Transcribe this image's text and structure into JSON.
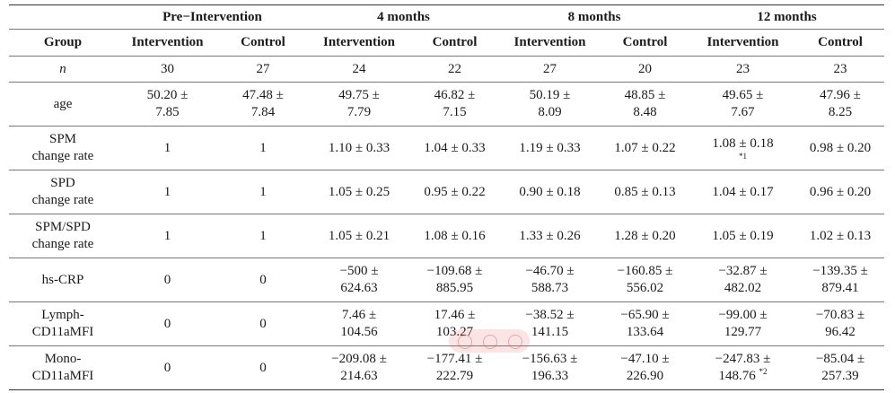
{
  "table": {
    "header_top": {
      "group_blank": "",
      "pre": "Pre−Intervention",
      "m4": "4 months",
      "m8": "8 months",
      "m12": "12 months"
    },
    "header_sub": {
      "group": "Group",
      "c1": "Intervention",
      "c2": "Control",
      "c3": "Intervention",
      "c4": "Control",
      "c5": "Intervention",
      "c6": "Control",
      "c7": "Intervention",
      "c8": "Control"
    },
    "n_row": {
      "label": "n",
      "c1": "30",
      "c2": "27",
      "c3": "24",
      "c4": "22",
      "c5": "27",
      "c6": "20",
      "c7": "23",
      "c8": "23"
    },
    "rows": [
      {
        "label_l1": "age",
        "label_l2": "",
        "c1_l1": "50.20 ±",
        "c1_l2": "7.85",
        "c2_l1": "47.48 ±",
        "c2_l2": "7.84",
        "c3_l1": "49.75 ±",
        "c3_l2": "7.79",
        "c4_l1": "46.82 ±",
        "c4_l2": "7.15",
        "c5_l1": "50.19 ±",
        "c5_l2": "8.09",
        "c6_l1": "48.85 ±",
        "c6_l2": "8.48",
        "c7_l1": "49.65 ±",
        "c7_l2": "7.67",
        "c8_l1": "47.96 ±",
        "c8_l2": "8.25"
      },
      {
        "label_l1": "SPM",
        "label_l2": "change rate",
        "c1": "1",
        "c2": "1",
        "c3": "1.10 ± 0.33",
        "c4": "1.04 ± 0.33",
        "c5": "1.19 ± 0.33",
        "c6": "1.07 ± 0.22",
        "c7": "1.08 ± 0.18",
        "c7_mark": "*1",
        "c8": "0.98 ± 0.20"
      },
      {
        "label_l1": "SPD",
        "label_l2": "change rate",
        "c1": "1",
        "c2": "1",
        "c3": "1.05 ± 0.25",
        "c4": "0.95 ± 0.22",
        "c5": "0.90 ± 0.18",
        "c6": "0.85 ± 0.13",
        "c7": "1.04 ± 0.17",
        "c8": "0.96 ± 0.20"
      },
      {
        "label_l1": "SPM/SPD",
        "label_l2": "change rate",
        "c1": "1",
        "c2": "1",
        "c3": "1.05 ± 0.21",
        "c4": "1.08 ± 0.16",
        "c5": "1.33 ± 0.26",
        "c6": "1.28 ± 0.20",
        "c7": "1.05 ± 0.19",
        "c8": "1.02 ± 0.13"
      },
      {
        "label_l1": "hs-CRP",
        "label_l2": "",
        "c1": "0",
        "c2": "0",
        "c3_l1": "−500 ±",
        "c3_l2": "624.63",
        "c4_l1": "−109.68 ±",
        "c4_l2": "885.95",
        "c5_l1": "−46.70 ±",
        "c5_l2": "588.73",
        "c6_l1": "−160.85 ±",
        "c6_l2": "556.02",
        "c7_l1": "−32.87 ±",
        "c7_l2": "482.02",
        "c8_l1": "−139.35 ±",
        "c8_l2": "879.41"
      },
      {
        "label_l1": "Lymph-",
        "label_l2": "CD11aMFI",
        "c1": "0",
        "c2": "0",
        "c3_l1": "7.46 ±",
        "c3_l2": "104.56",
        "c4_l1": "17.46 ±",
        "c4_l2": "103.27",
        "c5_l1": "−38.52 ±",
        "c5_l2": "141.15",
        "c6_l1": "−65.90 ±",
        "c6_l2": "133.64",
        "c7_l1": "−99.00 ±",
        "c7_l2": "129.77",
        "c8_l1": "−70.83 ±",
        "c8_l2": "96.42"
      },
      {
        "label_l1": "Mono-",
        "label_l2": "CD11aMFI",
        "c1": "0",
        "c2": "0",
        "c3_l1": "−209.08 ±",
        "c3_l2": "214.63",
        "c4_l1": "−177.41 ±",
        "c4_l2": "222.79",
        "c5_l1": "−156.63 ±",
        "c5_l2": "196.33",
        "c6_l1": "−47.10 ±",
        "c6_l2": "226.90",
        "c7_l1": "−247.83 ±",
        "c7_l2": "148.76",
        "c7_mark": "*2",
        "c8_l1": "−85.04 ±",
        "c8_l2": "257.39"
      }
    ]
  }
}
